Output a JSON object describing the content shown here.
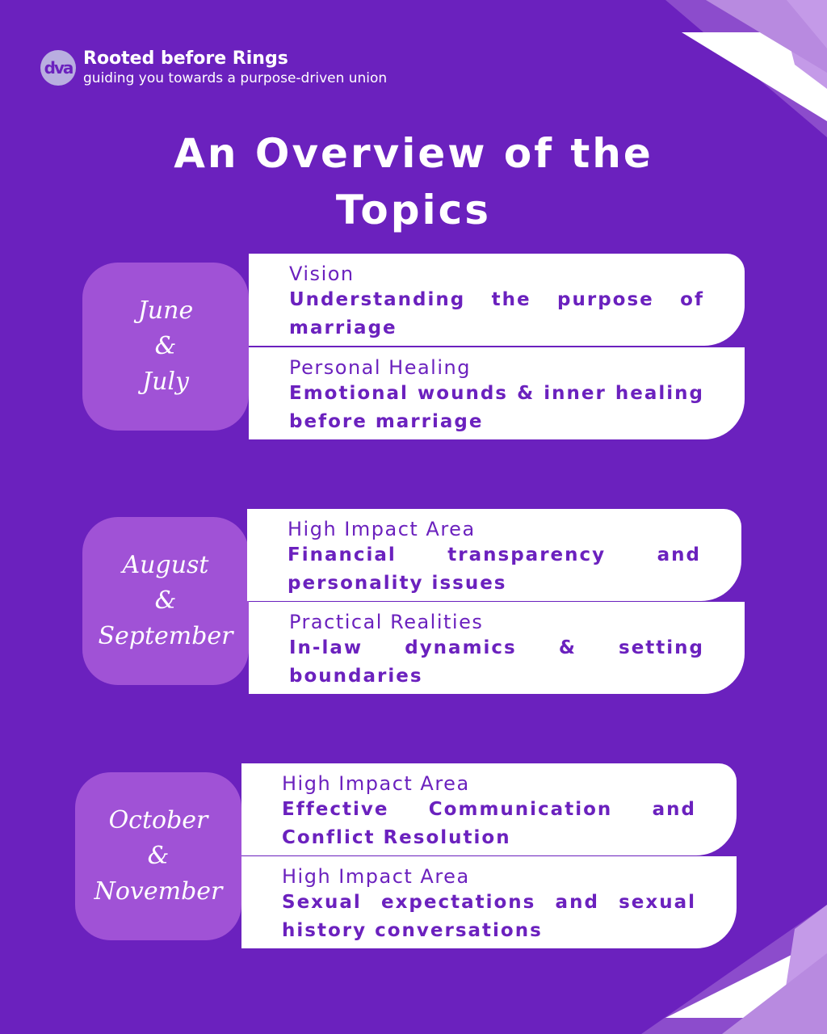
{
  "brand": {
    "logo_text": "dva",
    "name": "Rooted before Rings",
    "tagline": "guiding you towards a purpose-driven union"
  },
  "title": [
    "An Overview of the",
    "Topics"
  ],
  "colors": {
    "background": "#6b21be",
    "month_box": "#a052d6",
    "card": "#ffffff",
    "accent_light": "#b88ae0"
  },
  "groups": [
    {
      "months": [
        "June",
        "&",
        "July"
      ],
      "topics": [
        {
          "label": "Vision",
          "text": "Understanding the purpose of marriage"
        },
        {
          "label": "Personal Healing",
          "text": "Emotional wounds & inner healing before marriage"
        }
      ]
    },
    {
      "months": [
        "August",
        "&",
        "September"
      ],
      "topics": [
        {
          "label": "High Impact Area",
          "text": "Financial transparency and personality issues"
        },
        {
          "label": "Practical Realities",
          "text": "In-law dynamics & setting boundaries"
        }
      ]
    },
    {
      "months": [
        "October",
        "&",
        "November"
      ],
      "topics": [
        {
          "label": "High Impact Area",
          "text": "Effective Communication and Conflict Resolution"
        },
        {
          "label": "High Impact Area",
          "text": "Sexual expectations and sexual history conversations"
        }
      ]
    }
  ]
}
